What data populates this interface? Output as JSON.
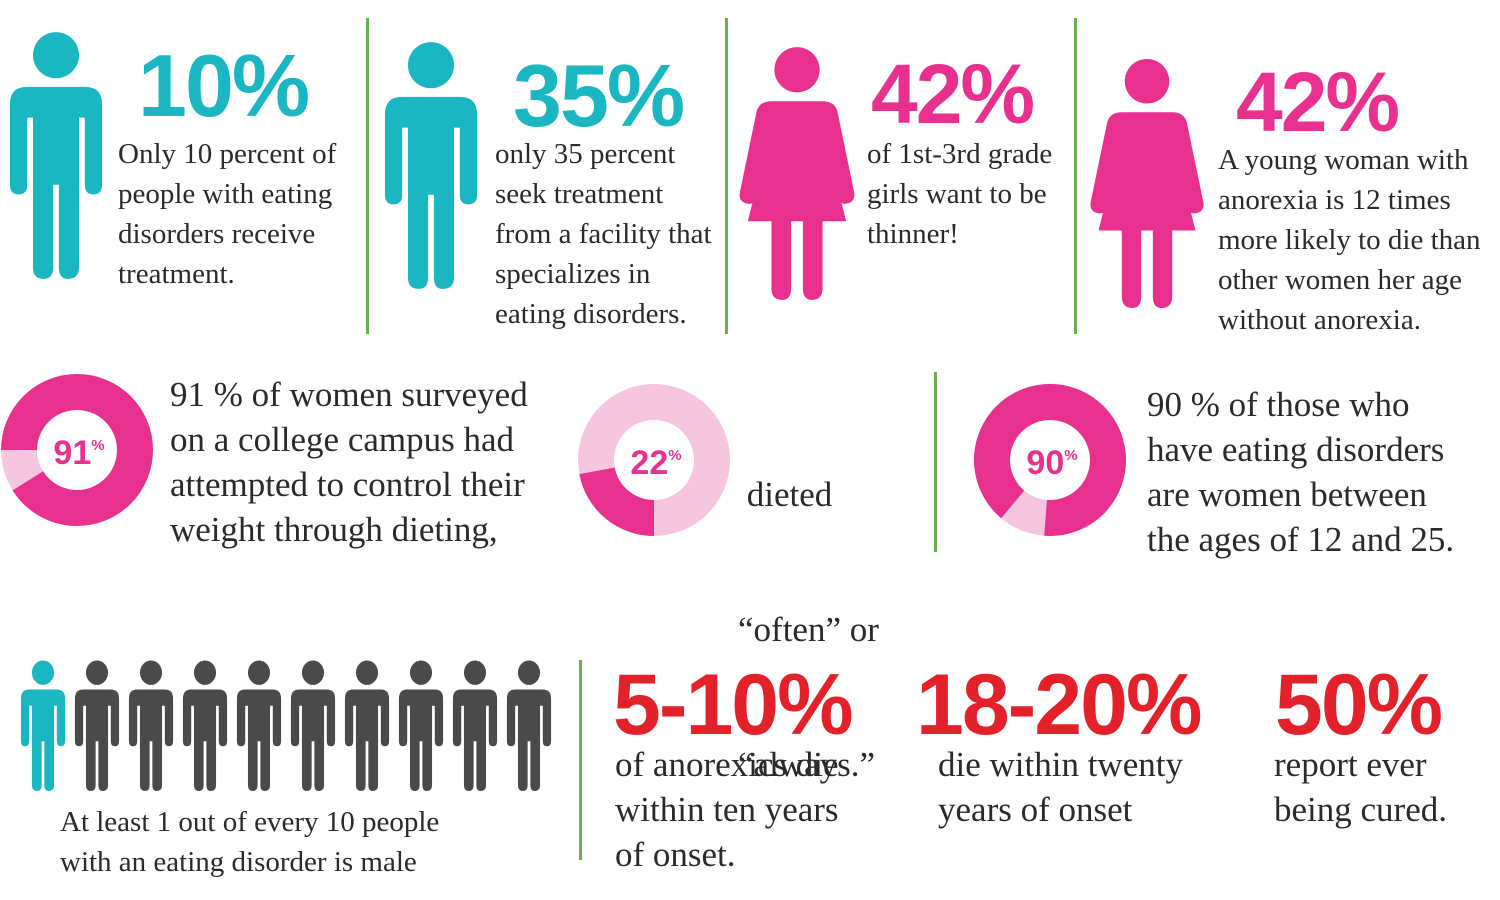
{
  "colors": {
    "teal": "#1ab6c1",
    "pink": "#e8318f",
    "light_pink": "#f6c6de",
    "red": "#e3212b",
    "grey": "#4a4a4a",
    "green": "#6ab04c",
    "text": "#2a2a2a"
  },
  "stats_top": [
    {
      "icon": "male-figure-icon",
      "percent": "10%",
      "text": [
        "Only 10 percent of",
        "people with eating",
        "disorders receive",
        "treatment."
      ]
    },
    {
      "icon": "male-figure-icon",
      "percent": "35%",
      "text": [
        "only 35 percent",
        "seek treatment",
        "from a facility that",
        "specializes in",
        "eating disorders."
      ]
    },
    {
      "icon": "female-figure-icon",
      "percent": "42%",
      "text": [
        "of 1st-3rd grade",
        "girls want to be",
        "thinner!"
      ]
    },
    {
      "icon": "female-figure-icon",
      "percent": "42%",
      "text": [
        "A young woman with",
        "anorexia is 12 times",
        "more likely to die than",
        "other women her age",
        "without anorexia."
      ]
    }
  ],
  "donuts": [
    {
      "label_num": "91",
      "label_pct": "%",
      "value": 91,
      "text": [
        "91 % of women surveyed",
        "on a college campus had",
        "attempted to control their",
        "weight through dieting,"
      ]
    },
    {
      "label_num": "22",
      "label_pct": "%",
      "value": 22,
      "text": [
        " dieted",
        "“often” or",
        "“always.”"
      ]
    },
    {
      "label_num": "90",
      "label_pct": "%",
      "value": 90,
      "text": [
        "90 % of those who",
        "have eating disorders",
        "are women between",
        "the ages of 12 and 25."
      ]
    }
  ],
  "people_row": {
    "highlighted": 1,
    "total": 10,
    "caption": [
      "At least 1 out of every 10 people",
      "with an eating disorder is male"
    ]
  },
  "stats_bottom": [
    {
      "percent": "5-10%",
      "text": [
        "of anorexics die",
        "within ten years",
        "of onset."
      ]
    },
    {
      "percent": "18-20%",
      "text": [
        "die within twenty",
        "years of onset"
      ]
    },
    {
      "percent": "50%",
      "text": [
        "report ever",
        "being cured."
      ]
    }
  ]
}
